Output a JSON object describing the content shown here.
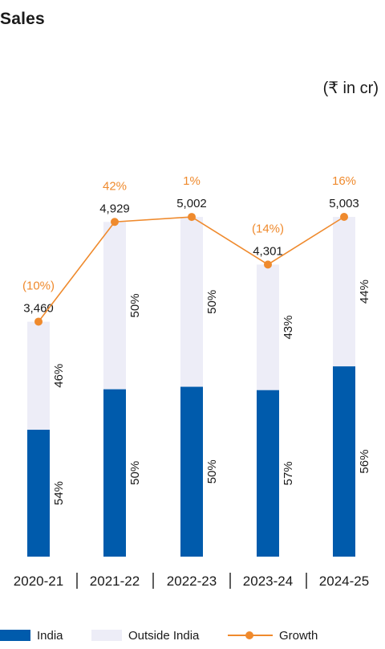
{
  "title": "Sales",
  "unit_label": "(₹ in cr)",
  "chart_data": {
    "type": "bar",
    "stacked": true,
    "categories": [
      "2020-21",
      "2021-22",
      "2022-23",
      "2023-24",
      "2024-25"
    ],
    "totals": [
      3460,
      4929,
      5002,
      4301,
      5003
    ],
    "total_labels": [
      "3,460",
      "4,929",
      "5,002",
      "4,301",
      "5,003"
    ],
    "series": [
      {
        "name": "India",
        "share_pct": [
          54,
          50,
          50,
          57,
          56
        ],
        "labels": [
          "54%",
          "50%",
          "50%",
          "57%",
          "56%"
        ],
        "color": "#005bac"
      },
      {
        "name": "Outside India",
        "share_pct": [
          46,
          50,
          50,
          43,
          44
        ],
        "labels": [
          "46%",
          "50%",
          "50%",
          "43%",
          "44%"
        ],
        "color": "#ededf7"
      }
    ],
    "growth": {
      "name": "Growth",
      "values_pct": [
        -10,
        42,
        1,
        -14,
        16
      ],
      "labels": [
        "(10%)",
        "42%",
        "1%",
        "(14%)",
        "16%"
      ],
      "color": "#ef8a2d"
    },
    "ylim": [
      0,
      5003
    ],
    "grid": false,
    "legend_position": "bottom"
  }
}
